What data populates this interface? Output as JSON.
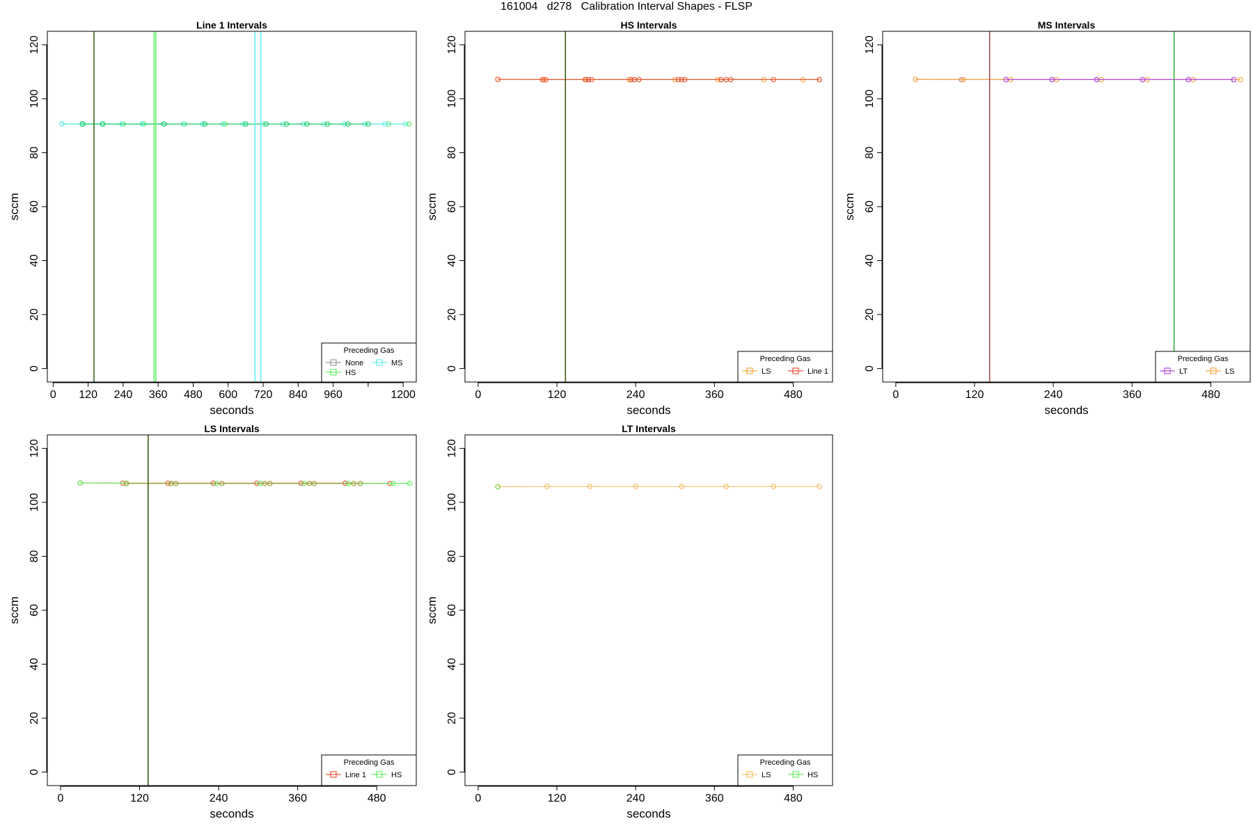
{
  "page_title": "161004   d278   Calibration Interval Shapes - FLSP",
  "chart_data": [
    {
      "type": "line",
      "title": "Line 1 Intervals",
      "xlabel": "seconds",
      "ylabel": "sccm",
      "xlim": [
        -20,
        1245
      ],
      "ylim": [
        -5,
        125
      ],
      "xticks": [
        0,
        120,
        240,
        360,
        480,
        600,
        720,
        840,
        960,
        1080,
        1200
      ],
      "xtick_labels": [
        "0",
        "120",
        "240",
        "360",
        "480",
        "600",
        "720",
        "840",
        "960",
        "",
        "1200"
      ],
      "yticks": [
        0,
        20,
        40,
        60,
        80,
        100,
        120
      ],
      "ytick_labels": [
        "0",
        "20",
        "40",
        "60",
        "80",
        "100",
        "120"
      ],
      "vlines": [
        {
          "x": 140,
          "color": "#3a6b1e"
        },
        {
          "x": 346,
          "color": "#66ee66"
        },
        {
          "x": 352,
          "color": "#66ee66"
        },
        {
          "x": 692,
          "color": "#66eeee"
        },
        {
          "x": 712,
          "color": "#66eeee"
        }
      ],
      "series": [
        {
          "color": "#66ee66",
          "x": [
            30,
            100,
            170,
            240,
            310,
            380,
            450,
            520,
            590,
            660,
            730,
            800,
            870,
            940,
            1010,
            1080,
            1150,
            1220
          ],
          "y": [
            90.7,
            90.7,
            90.7,
            90.6,
            90.7,
            90.6,
            90.6,
            90.6,
            90.6,
            90.6,
            90.6,
            90.6,
            90.6,
            90.6,
            90.6,
            90.6,
            90.6,
            90.6
          ]
        },
        {
          "color": "#66eeee",
          "x": [
            30,
            103,
            168,
            236,
            305,
            378,
            447,
            512,
            582,
            653,
            718,
            787,
            858,
            928,
            998,
            1068,
            1138,
            1208
          ],
          "y": [
            90.7,
            90.6,
            90.7,
            90.6,
            90.7,
            90.7,
            90.6,
            90.6,
            90.6,
            90.6,
            90.6,
            90.6,
            90.6,
            90.6,
            90.6,
            90.6,
            90.6,
            90.6
          ]
        },
        {
          "color": "#2ecc71",
          "x": [
            100,
            170,
            380,
            520,
            660,
            730,
            800,
            870,
            940,
            1010,
            1080
          ],
          "y": [
            90.6,
            90.6,
            90.6,
            90.6,
            90.6,
            90.6,
            90.6,
            90.6,
            90.6,
            90.6,
            90.6
          ]
        }
      ],
      "legend": {
        "title": "Preceding Gas",
        "position": "bottom-right",
        "entries": [
          {
            "label": "None",
            "color": "#999999"
          },
          {
            "label": "MS",
            "color": "#66eeee"
          },
          {
            "label": "HS",
            "color": "#66ee66"
          }
        ]
      }
    },
    {
      "type": "line",
      "title": "HS Intervals",
      "xlabel": "seconds",
      "ylabel": "sccm",
      "xlim": [
        -20,
        540
      ],
      "ylim": [
        -5,
        125
      ],
      "xticks": [
        0,
        120,
        240,
        360,
        480
      ],
      "xtick_labels": [
        "0",
        "120",
        "240",
        "360",
        "480"
      ],
      "yticks": [
        0,
        20,
        40,
        60,
        80,
        100,
        120
      ],
      "ytick_labels": [
        "0",
        "20",
        "40",
        "60",
        "80",
        "100",
        "120"
      ],
      "vlines": [
        {
          "x": 133,
          "color": "#3a5a10"
        }
      ],
      "series": [
        {
          "color": "#f4a742",
          "x": [
            30,
            100,
            165,
            230,
            300,
            365,
            435,
            495,
            520
          ],
          "y": [
            107.2,
            107.1,
            107.1,
            107.1,
            107.1,
            107.1,
            107.1,
            107.1,
            107.1
          ]
        },
        {
          "color": "#e85a3c",
          "x": [
            30,
            98,
            103,
            163,
            168,
            173,
            233,
            238,
            245,
            305,
            310,
            315,
            370,
            378,
            385,
            450,
            520
          ],
          "y": [
            107.2,
            107.1,
            107.1,
            107.1,
            107.1,
            107.1,
            107.1,
            107.1,
            107.1,
            107.1,
            107.1,
            107.1,
            107.1,
            107.1,
            107.1,
            107.1,
            107.1
          ]
        }
      ],
      "legend": {
        "title": "Preceding Gas",
        "position": "bottom-right",
        "entries": [
          {
            "label": "LS",
            "color": "#f4a742"
          },
          {
            "label": "Line 1",
            "color": "#e8553c"
          }
        ]
      }
    },
    {
      "type": "line",
      "title": "MS Intervals",
      "xlabel": "seconds",
      "ylabel": "sccm",
      "xlim": [
        -20,
        540
      ],
      "ylim": [
        -5,
        125
      ],
      "xticks": [
        0,
        120,
        240,
        360,
        480
      ],
      "xtick_labels": [
        "0",
        "120",
        "240",
        "360",
        "480"
      ],
      "yticks": [
        0,
        20,
        40,
        60,
        80,
        100,
        120
      ],
      "ytick_labels": [
        "0",
        "20",
        "40",
        "60",
        "80",
        "100",
        "120"
      ],
      "vlines": [
        {
          "x": 143,
          "color": "#a05050"
        },
        {
          "x": 424,
          "color": "#3aaa3a"
        }
      ],
      "series": [
        {
          "color": "#c88aa0",
          "x": [
            30,
            100,
            168,
            238,
            306,
            376,
            446,
            515
          ],
          "y": [
            107.2,
            107.1,
            107.1,
            107.1,
            107.1,
            107.1,
            107.1,
            107.1
          ]
        },
        {
          "color": "#f4a742",
          "x": [
            30,
            103,
            175,
            245,
            313,
            383,
            453,
            525
          ],
          "y": [
            107.2,
            107.1,
            107.1,
            107.1,
            107.1,
            107.1,
            107.1,
            107.1
          ]
        },
        {
          "color": "#b44ee0",
          "x": [
            168,
            238,
            306,
            376,
            446,
            515
          ],
          "y": [
            107.1,
            107.1,
            107.1,
            107.1,
            107.1,
            107.1
          ]
        }
      ],
      "legend": {
        "title": "Preceding Gas",
        "position": "bottom-right",
        "entries": [
          {
            "label": "LT",
            "color": "#b44ee0"
          },
          {
            "label": "LS",
            "color": "#f4a742"
          }
        ]
      }
    },
    {
      "type": "line",
      "title": "LS Intervals",
      "xlabel": "seconds",
      "ylabel": "sccm",
      "xlim": [
        -20,
        540
      ],
      "ylim": [
        -5,
        125
      ],
      "xticks": [
        0,
        120,
        240,
        360,
        480
      ],
      "xtick_labels": [
        "0",
        "120",
        "240",
        "360",
        "480"
      ],
      "yticks": [
        0,
        20,
        40,
        60,
        80,
        100,
        120
      ],
      "ytick_labels": [
        "0",
        "20",
        "40",
        "60",
        "80",
        "100",
        "120"
      ],
      "vlines": [
        {
          "x": 133,
          "color": "#3a5a10"
        }
      ],
      "series": [
        {
          "color": "#e85a3c",
          "x": [
            30,
            95,
            163,
            232,
            298,
            365,
            432,
            500
          ],
          "y": [
            107.2,
            107.1,
            107.1,
            107.1,
            107.1,
            107.1,
            107.1,
            107.0
          ]
        },
        {
          "color": "#66ee66",
          "x": [
            30,
            100,
            168,
            237,
            303,
            370,
            437,
            505,
            530
          ],
          "y": [
            107.2,
            107.1,
            107.0,
            107.0,
            107.0,
            107.0,
            107.0,
            107.0,
            107.0
          ]
        },
        {
          "color": "#a0a040",
          "x": [
            100,
            168,
            175,
            245,
            310,
            318,
            378,
            385,
            445,
            455
          ],
          "y": [
            107.0,
            107.0,
            107.0,
            107.0,
            107.0,
            107.0,
            107.0,
            107.0,
            107.0,
            107.0
          ]
        }
      ],
      "legend": {
        "title": "Preceding Gas",
        "position": "bottom-right",
        "entries": [
          {
            "label": "Line 1",
            "color": "#e8553c"
          },
          {
            "label": "HS",
            "color": "#66ee66"
          }
        ]
      }
    },
    {
      "type": "line",
      "title": "LT Intervals",
      "xlabel": "seconds",
      "ylabel": "sccm",
      "xlim": [
        -20,
        540
      ],
      "ylim": [
        -5,
        125
      ],
      "xticks": [
        0,
        120,
        240,
        360,
        480
      ],
      "xtick_labels": [
        "0",
        "120",
        "240",
        "360",
        "480"
      ],
      "yticks": [
        0,
        20,
        40,
        60,
        80,
        100,
        120
      ],
      "ytick_labels": [
        "0",
        "20",
        "40",
        "60",
        "80",
        "100",
        "120"
      ],
      "vlines": [],
      "series": [
        {
          "color": "#f4c06a",
          "x": [
            30,
            105,
            170,
            240,
            310,
            378,
            450,
            520
          ],
          "y": [
            105.8,
            105.9,
            105.9,
            105.9,
            105.9,
            105.9,
            105.9,
            105.9
          ]
        },
        {
          "color": "#7ad44a",
          "x": [
            30
          ],
          "y": [
            105.8
          ]
        }
      ],
      "legend": {
        "title": "Preceding Gas",
        "position": "bottom-right",
        "entries": [
          {
            "label": "LS",
            "color": "#f4c06a"
          },
          {
            "label": "HS",
            "color": "#66ee66"
          }
        ]
      }
    }
  ]
}
